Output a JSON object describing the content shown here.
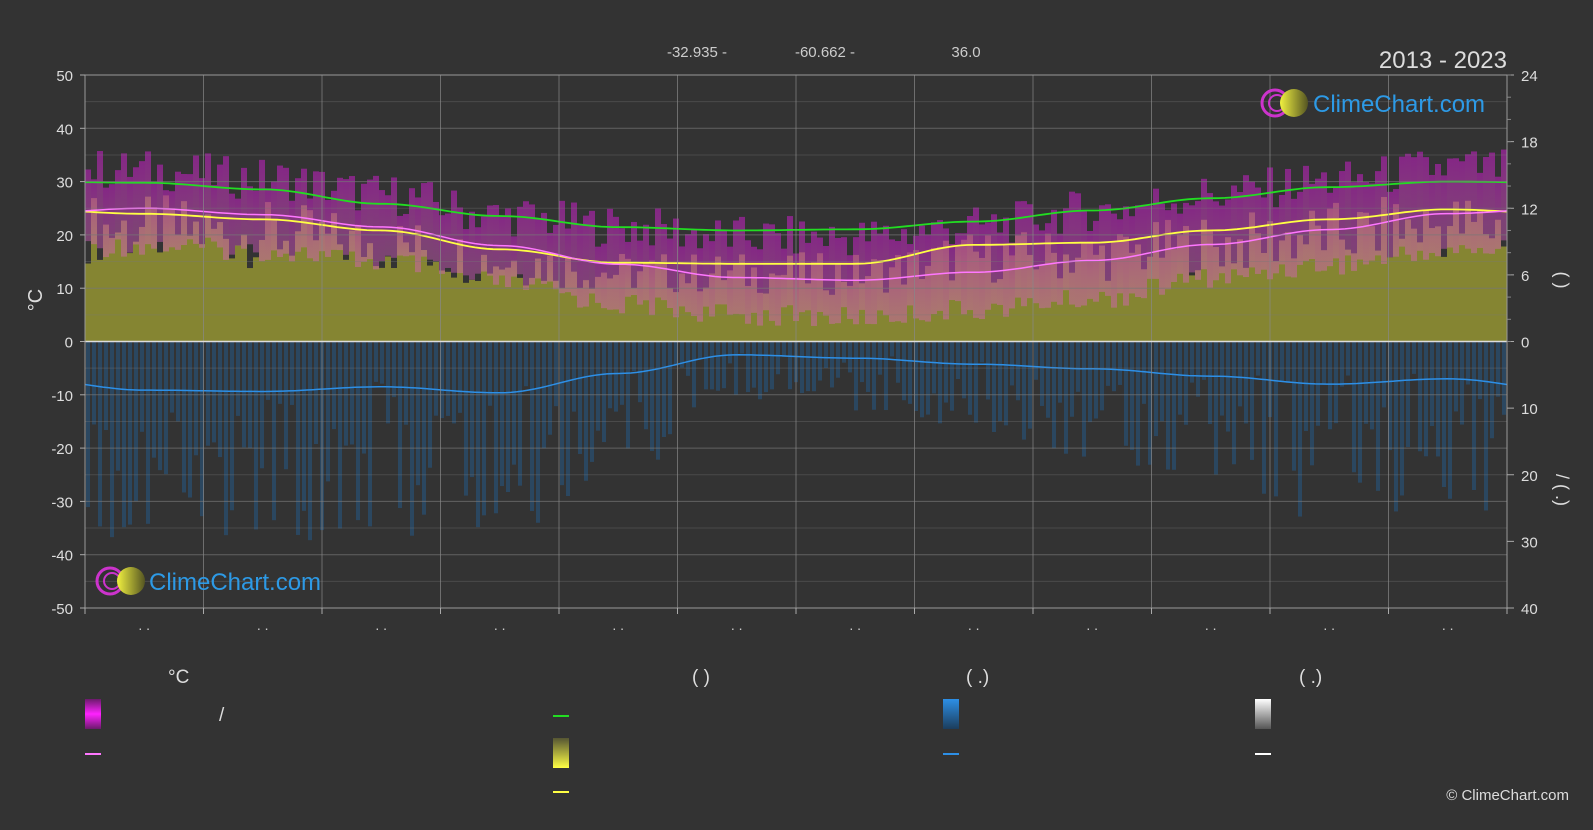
{
  "header": {
    "coords": [
      "-32.935 -",
      "-60.662 -",
      "36.0"
    ],
    "years": "2013 - 2023"
  },
  "brand": {
    "name": "ClimeChart.com",
    "copyright": "© ClimeChart.com"
  },
  "colors": {
    "background": "#333333",
    "temp_band": "#cc22cc",
    "daylight_line": "#22dd22",
    "sunshine_band": "#c8c832",
    "sunshine_line": "#ffff44",
    "temp_line": "#ff77ff",
    "precip_band": "#1e6eb4",
    "precip_line": "#2d8fe6",
    "brand_text": "#2d9ae6"
  },
  "chart_data": {
    "type": "line",
    "x_months": 12,
    "month_tick_labels": [
      ". .",
      ". .",
      ". .",
      ". .",
      ". .",
      ". .",
      ". .",
      ". .",
      ". .",
      ". .",
      ". .",
      ". ."
    ],
    "left_axis": {
      "label": "°C",
      "range": [
        -50,
        50
      ],
      "ticks": [
        50,
        40,
        30,
        20,
        10,
        0,
        -10,
        -20,
        -30,
        -40,
        -50
      ]
    },
    "right_axis_top": {
      "range": [
        0,
        24
      ],
      "ticks": [
        24,
        18,
        12,
        6,
        0
      ],
      "label": "(    )"
    },
    "right_axis_bottom": {
      "range": [
        0,
        40
      ],
      "ticks": [
        0,
        10,
        20,
        30,
        40
      ],
      "label": "/ (   .)"
    },
    "series": [
      {
        "key": "daylight",
        "axis": "right_top",
        "values": [
          14.3,
          13.7,
          12.4,
          11.3,
          10.3,
          10.0,
          10.1,
          10.8,
          11.8,
          12.9,
          13.9,
          14.4
        ]
      },
      {
        "key": "sunshine",
        "axis": "right_top",
        "values": [
          11.5,
          11.0,
          10.0,
          8.3,
          7.1,
          7.0,
          7.0,
          8.7,
          8.9,
          10.0,
          11.0,
          11.9
        ]
      },
      {
        "key": "mean_temp",
        "axis": "left",
        "values": [
          25.0,
          23.8,
          21.5,
          18.0,
          14.5,
          12.0,
          11.5,
          13.0,
          15.2,
          18.2,
          21.0,
          24.0
        ]
      },
      {
        "key": "temp_max",
        "axis": "left",
        "values": [
          30.5,
          29.0,
          26.0,
          22.0,
          20.0,
          18.0,
          18.0,
          20.0,
          23.0,
          26.0,
          28.5,
          31.0
        ]
      },
      {
        "key": "temp_min",
        "axis": "left",
        "values": [
          20.0,
          19.0,
          17.0,
          13.0,
          9.0,
          7.0,
          6.5,
          8.0,
          10.0,
          14.0,
          16.5,
          19.0
        ]
      },
      {
        "key": "precip_mm",
        "axis": "right_bottom",
        "values": [
          7.3,
          7.5,
          6.8,
          7.7,
          4.8,
          2.0,
          2.5,
          3.4,
          4.1,
          5.2,
          6.4,
          5.6
        ]
      }
    ]
  },
  "legend": {
    "col1_header": "°C",
    "col1_sep": "/",
    "col2_header": "(          )",
    "col3_header": "(    .)",
    "col4_header": "(    .)"
  }
}
